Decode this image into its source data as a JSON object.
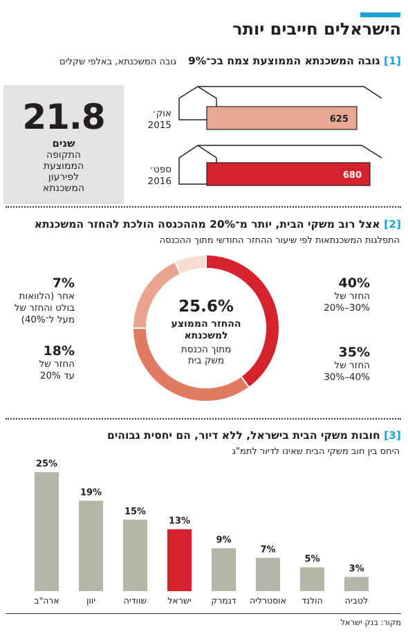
{
  "title": "הישראלים חייבים יותר",
  "colors": {
    "accent": "#1ba1d8",
    "red": "#d5232e",
    "salmon": "#e7a893",
    "gray": "#b5b5a8"
  },
  "section1": {
    "number": "[1]",
    "heading": "גובה המשכנתא הממוצעת צמח בכ־9%",
    "subheading": "גובה המשכנתא, באלפי שקלים",
    "highlight": {
      "value": "21.8",
      "unit": "שנים",
      "lines": [
        "התקופה",
        "הממוצעת",
        "לפירעון",
        "המשכנתא"
      ]
    },
    "chart_data": {
      "type": "bar",
      "categories": [
        "אוק׳ 2015",
        "ספט׳ 2016"
      ],
      "values": [
        625,
        680
      ],
      "labels": [
        {
          "line1": "אוק׳",
          "line2": "2015"
        },
        {
          "line1": "ספט׳",
          "line2": "2016"
        }
      ],
      "title": "גובה המשכנתא הממוצעת צמח בכ־9%",
      "ylabel": "גובה המשכנתא, באלפי שקלים"
    }
  },
  "section2": {
    "number": "[2]",
    "heading": "אצל רוב משקי הבית, יותר מ־20% מההכנסה הולכת להחזר המשכנתא",
    "subheading": "התפלגות המשכנתאות לפי שיעור ההחזר החודשי מתוך ההכנסה",
    "center": {
      "value": "25.6%",
      "line1": "ההחזר הממוצע",
      "line2": "למשכנתא",
      "line3": "מתוך הכנסת",
      "line4": "משק בית"
    },
    "chart_data": {
      "type": "pie",
      "categories": [
        "החזר של 20%–30%",
        "החזר של 30%–40%",
        "החזר של עד 20%",
        "אחר (הלוואות בולט והחזר של מעל ל־40%)"
      ],
      "values": [
        40,
        35,
        18,
        7
      ],
      "segments": [
        {
          "pct": "40%",
          "lines": [
            "החזר של",
            "30%–20%"
          ],
          "color": "#d5232e"
        },
        {
          "pct": "35%",
          "lines": [
            "החזר של",
            "40%–30%"
          ],
          "color": "#e07b62"
        },
        {
          "pct": "18%",
          "lines": [
            "החזר של",
            "עד 20%"
          ],
          "color": "#e9a58f"
        },
        {
          "pct": "7%",
          "lines": [
            "אחר (הלוואות",
            "בולט והחזר של",
            "מעל ל־40%)"
          ],
          "color": "#f8dcd2"
        }
      ]
    }
  },
  "section3": {
    "number": "[3]",
    "heading": "חובות משקי הבית בישראל, ללא דיור, הם יחסית גבוהים",
    "subheading": "היחס בין חוב משקי הבית שאינו לדיור לתמ\"ג",
    "chart_data": {
      "type": "bar",
      "categories": [
        "ארה\"ב",
        "יוון",
        "שוודיה",
        "ישראל",
        "דנמרק",
        "אוסטרליה",
        "הולנד",
        "לטביה"
      ],
      "values": [
        25,
        19,
        15,
        13,
        9,
        7,
        5,
        3
      ],
      "value_labels": [
        "25%",
        "19%",
        "15%",
        "13%",
        "9%",
        "7%",
        "5%",
        "3%"
      ],
      "highlight": "ישראל",
      "ylim": [
        0,
        25
      ]
    }
  },
  "source": "מקור: בנק ישראל"
}
